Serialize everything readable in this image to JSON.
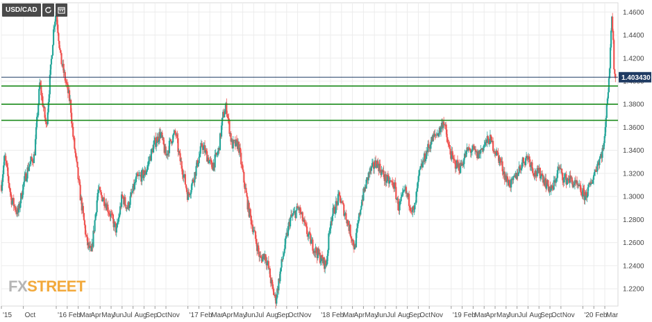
{
  "toolbar": {
    "symbol": "USD/CAD",
    "refresh_icon": "refresh-icon",
    "calendar_icon": "calendar-icon"
  },
  "watermark": {
    "part1": "FX",
    "part2": "STREET"
  },
  "colors": {
    "up": "#26a69a",
    "down": "#ef5350",
    "support_line": "#1a8a1a",
    "price_line": "#1f3b63",
    "price_label_bg": "#1f3b63",
    "grid": "#ececec"
  },
  "chart_data": {
    "type": "candlestick",
    "symbol": "USD/CAD",
    "y_ticks": [
      "1.2200",
      "1.2400",
      "1.2600",
      "1.2800",
      "1.3000",
      "1.3200",
      "1.3400",
      "1.3600",
      "1.3800",
      "1.4000",
      "1.4200",
      "1.4400",
      "1.4600"
    ],
    "y_tick_values": [
      1.22,
      1.24,
      1.26,
      1.28,
      1.3,
      1.32,
      1.34,
      1.36,
      1.38,
      1.4,
      1.42,
      1.44,
      1.46
    ],
    "ylim": [
      1.205,
      1.468
    ],
    "x_ticks": [
      {
        "label": "'15",
        "t": 0
      },
      {
        "label": "Oct",
        "t": 2
      },
      {
        "label": "'16",
        "t": 5
      },
      {
        "label": "Feb",
        "t": 6
      },
      {
        "label": "Mar",
        "t": 7
      },
      {
        "label": "Apr",
        "t": 8
      },
      {
        "label": "May",
        "t": 9
      },
      {
        "label": "Jun",
        "t": 10
      },
      {
        "label": "Jul",
        "t": 11
      },
      {
        "label": "Aug",
        "t": 12
      },
      {
        "label": "Sep",
        "t": 13
      },
      {
        "label": "Oct",
        "t": 14
      },
      {
        "label": "Nov",
        "t": 15
      },
      {
        "label": "'17",
        "t": 17
      },
      {
        "label": "Feb",
        "t": 18
      },
      {
        "label": "Mar",
        "t": 19
      },
      {
        "label": "Apr",
        "t": 20
      },
      {
        "label": "May",
        "t": 21
      },
      {
        "label": "Jun",
        "t": 22
      },
      {
        "label": "Jul",
        "t": 23
      },
      {
        "label": "Aug",
        "t": 24
      },
      {
        "label": "Sep",
        "t": 25
      },
      {
        "label": "Oct",
        "t": 26
      },
      {
        "label": "Nov",
        "t": 27
      },
      {
        "label": "'18",
        "t": 29
      },
      {
        "label": "Feb",
        "t": 30
      },
      {
        "label": "Mar",
        "t": 31
      },
      {
        "label": "Apr",
        "t": 32
      },
      {
        "label": "May",
        "t": 33
      },
      {
        "label": "Jun",
        "t": 34
      },
      {
        "label": "Jul",
        "t": 35
      },
      {
        "label": "Aug",
        "t": 36
      },
      {
        "label": "Sep",
        "t": 37
      },
      {
        "label": "Oct",
        "t": 38
      },
      {
        "label": "Nov",
        "t": 39
      },
      {
        "label": "'19",
        "t": 41
      },
      {
        "label": "Feb",
        "t": 42
      },
      {
        "label": "Mar",
        "t": 43
      },
      {
        "label": "Apr",
        "t": 44
      },
      {
        "label": "May",
        "t": 45
      },
      {
        "label": "Jun",
        "t": 46
      },
      {
        "label": "Jul",
        "t": 47
      },
      {
        "label": "Aug",
        "t": 48
      },
      {
        "label": "Sep",
        "t": 49
      },
      {
        "label": "Oct",
        "t": 50
      },
      {
        "label": "Nov",
        "t": 51
      },
      {
        "label": "'20",
        "t": 53
      },
      {
        "label": "Feb",
        "t": 54
      },
      {
        "label": "Mar",
        "t": 55
      }
    ],
    "xlim": [
      0,
      56.2
    ],
    "path_knots": [
      [
        0,
        1.31
      ],
      [
        0.3,
        1.335
      ],
      [
        0.9,
        1.298
      ],
      [
        1.5,
        1.285
      ],
      [
        2.0,
        1.31
      ],
      [
        2.5,
        1.327
      ],
      [
        3.0,
        1.335
      ],
      [
        3.5,
        1.398
      ],
      [
        4.1,
        1.36
      ],
      [
        4.8,
        1.45
      ],
      [
        5.0,
        1.46
      ],
      [
        5.4,
        1.42
      ],
      [
        5.9,
        1.398
      ],
      [
        6.3,
        1.38
      ],
      [
        6.5,
        1.355
      ],
      [
        7.2,
        1.3
      ],
      [
        7.8,
        1.26
      ],
      [
        8.2,
        1.25
      ],
      [
        8.8,
        1.305
      ],
      [
        9.5,
        1.295
      ],
      [
        10.5,
        1.27
      ],
      [
        11.0,
        1.3
      ],
      [
        11.5,
        1.29
      ],
      [
        12.3,
        1.315
      ],
      [
        13.1,
        1.32
      ],
      [
        13.9,
        1.345
      ],
      [
        14.5,
        1.355
      ],
      [
        15.0,
        1.335
      ],
      [
        15.5,
        1.35
      ],
      [
        15.9,
        1.355
      ],
      [
        16.2,
        1.335
      ],
      [
        16.6,
        1.32
      ],
      [
        17.0,
        1.3
      ],
      [
        17.5,
        1.315
      ],
      [
        18.3,
        1.345
      ],
      [
        19.2,
        1.325
      ],
      [
        19.8,
        1.34
      ],
      [
        20.2,
        1.37
      ],
      [
        20.5,
        1.378
      ],
      [
        21.0,
        1.345
      ],
      [
        21.6,
        1.345
      ],
      [
        22.0,
        1.32
      ],
      [
        22.5,
        1.29
      ],
      [
        23.0,
        1.27
      ],
      [
        23.6,
        1.245
      ],
      [
        24.0,
        1.25
      ],
      [
        24.3,
        1.24
      ],
      [
        24.7,
        1.22
      ],
      [
        25.0,
        1.21
      ],
      [
        25.6,
        1.245
      ],
      [
        26.3,
        1.28
      ],
      [
        27.1,
        1.29
      ],
      [
        27.8,
        1.27
      ],
      [
        28.5,
        1.255
      ],
      [
        29.2,
        1.245
      ],
      [
        29.6,
        1.24
      ],
      [
        30.0,
        1.28
      ],
      [
        30.8,
        1.3
      ],
      [
        31.5,
        1.28
      ],
      [
        32.2,
        1.255
      ],
      [
        32.8,
        1.295
      ],
      [
        33.5,
        1.32
      ],
      [
        34.2,
        1.33
      ],
      [
        35.0,
        1.315
      ],
      [
        35.8,
        1.31
      ],
      [
        36.2,
        1.29
      ],
      [
        36.8,
        1.305
      ],
      [
        37.6,
        1.285
      ],
      [
        38.1,
        1.32
      ],
      [
        38.8,
        1.34
      ],
      [
        39.3,
        1.35
      ],
      [
        40.0,
        1.358
      ],
      [
        40.3,
        1.367
      ],
      [
        40.7,
        1.345
      ],
      [
        41.2,
        1.33
      ],
      [
        41.8,
        1.325
      ],
      [
        42.5,
        1.34
      ],
      [
        43.0,
        1.34
      ],
      [
        43.4,
        1.335
      ],
      [
        44.0,
        1.345
      ],
      [
        44.5,
        1.35
      ],
      [
        45.0,
        1.34
      ],
      [
        45.5,
        1.33
      ],
      [
        46.0,
        1.315
      ],
      [
        46.5,
        1.31
      ],
      [
        47.0,
        1.32
      ],
      [
        47.5,
        1.33
      ],
      [
        48.0,
        1.335
      ],
      [
        48.6,
        1.32
      ],
      [
        49.2,
        1.32
      ],
      [
        49.7,
        1.31
      ],
      [
        50.2,
        1.305
      ],
      [
        50.8,
        1.325
      ],
      [
        51.3,
        1.315
      ],
      [
        51.8,
        1.315
      ],
      [
        52.3,
        1.31
      ],
      [
        52.8,
        1.305
      ],
      [
        53.2,
        1.3
      ],
      [
        53.7,
        1.31
      ],
      [
        54.2,
        1.325
      ],
      [
        54.8,
        1.34
      ],
      [
        55.0,
        1.35
      ],
      [
        55.15,
        1.38
      ],
      [
        55.4,
        1.4
      ],
      [
        55.5,
        1.43
      ],
      [
        55.6,
        1.455
      ],
      [
        55.75,
        1.445
      ],
      [
        55.85,
        1.41
      ],
      [
        56.0,
        1.403
      ]
    ],
    "horizontal_lines": [
      {
        "name": "support-1",
        "value": 1.3958,
        "color": "#1a8a1a"
      },
      {
        "name": "support-2",
        "value": 1.38,
        "color": "#1a8a1a"
      },
      {
        "name": "support-3",
        "value": 1.366,
        "color": "#1a8a1a"
      },
      {
        "name": "current-price-line",
        "value": 1.40343,
        "color": "#1f3b63"
      }
    ],
    "last_price_label": "1.403430",
    "last_price": 1.40343,
    "grid": true
  }
}
